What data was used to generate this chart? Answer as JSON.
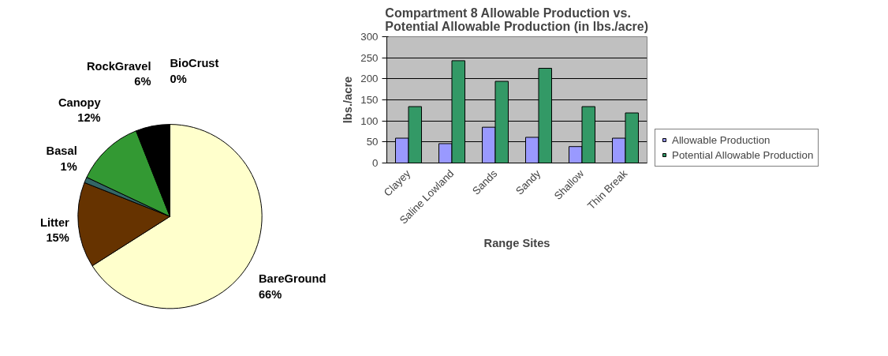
{
  "chart_data": [
    {
      "type": "pie",
      "categories": [
        "BareGround",
        "Litter",
        "Basal",
        "Canopy",
        "RockGravel",
        "BioCrust"
      ],
      "values": [
        66,
        15,
        1,
        12,
        6,
        0
      ],
      "colors": [
        "#ffffcc",
        "#663300",
        "#336666",
        "#339933",
        "#000000",
        "#9999ff"
      ],
      "value_labels": [
        "66%",
        "15%",
        "1%",
        "12%",
        "6%",
        "0%"
      ],
      "data_labels": true
    },
    {
      "type": "bar",
      "title": "Compartment 8 Allowable Production vs.\nPotential Allowable Production (in lbs./acre)",
      "xlabel": "Range Sites",
      "ylabel": "lbs./acre",
      "categories": [
        "Clayey",
        "Saline Lowland",
        "Sands",
        "Sandy",
        "Shallow",
        "Thin Break"
      ],
      "series": [
        {
          "name": "Allowable Production",
          "color": "#9999ff",
          "values": [
            59,
            46,
            85,
            61,
            39,
            59
          ]
        },
        {
          "name": "Potential Allowable Production",
          "color": "#339966",
          "values": [
            134,
            243,
            194,
            225,
            134,
            119
          ]
        }
      ],
      "ylim": [
        0,
        300
      ],
      "yticks": [
        0,
        50,
        100,
        150,
        200,
        250,
        300
      ],
      "grid": "y",
      "legend": "right"
    }
  ]
}
